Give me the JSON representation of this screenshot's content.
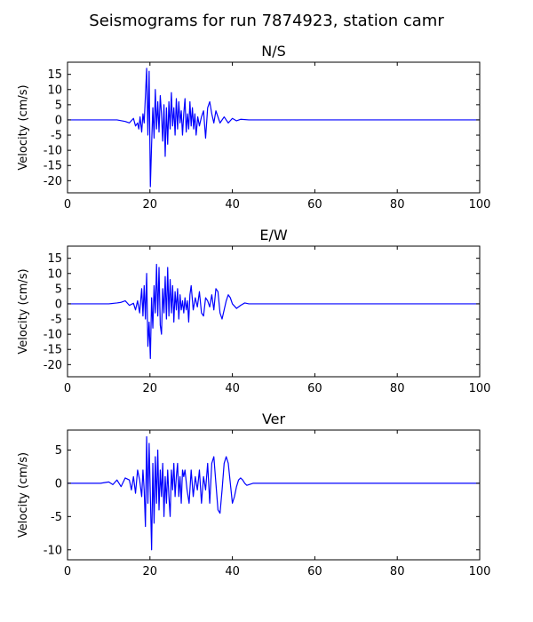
{
  "title": "Seismograms for run 7874923, station camr",
  "chart_data": [
    {
      "type": "line",
      "title": "N/S",
      "xlabel": "",
      "ylabel": "Velocity (cm/s)",
      "xlim": [
        0,
        100
      ],
      "ylim": [
        -24,
        19
      ],
      "xticks": [
        0,
        20,
        40,
        60,
        80,
        100
      ],
      "yticks": [
        15,
        10,
        5,
        0,
        -5,
        -10,
        -15,
        -20
      ],
      "grid": false,
      "color": "#0000ff",
      "series": [
        {
          "x": [
            0,
            12,
            14,
            15,
            16,
            16.5,
            17,
            17.3,
            17.6,
            18,
            18.3,
            18.6,
            18.9,
            19.2,
            19.5,
            19.8,
            20.1,
            20.4,
            20.7,
            21.0,
            21.3,
            21.6,
            21.9,
            22.2,
            22.5,
            22.8,
            23.1,
            23.4,
            23.7,
            24.0,
            24.3,
            24.6,
            24.9,
            25.2,
            25.5,
            25.8,
            26.1,
            26.4,
            26.7,
            27.0,
            27.3,
            27.6,
            27.9,
            28.2,
            28.5,
            28.8,
            29.1,
            29.4,
            29.7,
            30.0,
            30.3,
            30.6,
            30.9,
            31.2,
            31.6,
            32.0,
            32.5,
            33.0,
            33.5,
            34.0,
            34.5,
            35.0,
            35.5,
            36.0,
            37.0,
            38.0,
            39.0,
            40.0,
            41.0,
            42.0,
            44.0,
            46.0,
            50.0,
            60.0,
            100.0
          ],
          "y": [
            0,
            0,
            -0.5,
            -1,
            0.5,
            -2,
            -1,
            -3,
            1,
            -4,
            2,
            -1,
            8,
            17,
            -5,
            16,
            -22,
            -8,
            4,
            -6,
            10,
            -3,
            6,
            -4,
            8,
            2,
            -7,
            5,
            -12,
            4,
            -8,
            6,
            -3,
            9,
            -2,
            4,
            -5,
            7,
            -3,
            6,
            -1,
            3,
            -5,
            2,
            7,
            -4,
            2,
            -3,
            6,
            -2,
            4,
            -3,
            2,
            -5,
            1,
            -2,
            1,
            3,
            -6,
            4,
            6,
            2,
            -1,
            3,
            -1,
            1,
            -1,
            0.5,
            -0.3,
            0.2,
            0,
            0,
            0,
            0,
            0
          ]
        }
      ]
    },
    {
      "type": "line",
      "title": "E/W",
      "xlabel": "",
      "ylabel": "Velocity (cm/s)",
      "xlim": [
        0,
        100
      ],
      "ylim": [
        -24,
        19
      ],
      "xticks": [
        0,
        20,
        40,
        60,
        80,
        100
      ],
      "yticks": [
        15,
        10,
        5,
        0,
        -5,
        -10,
        -15,
        -20
      ],
      "grid": false,
      "color": "#0000ff",
      "series": [
        {
          "x": [
            0,
            10,
            12,
            13,
            14,
            15,
            16,
            16.5,
            17,
            17.5,
            18,
            18.3,
            18.6,
            18.9,
            19.2,
            19.5,
            19.8,
            20.1,
            20.4,
            20.7,
            21.0,
            21.3,
            21.6,
            21.9,
            22.2,
            22.5,
            22.8,
            23.1,
            23.4,
            23.7,
            24.0,
            24.3,
            24.6,
            24.9,
            25.2,
            25.5,
            25.8,
            26.1,
            26.4,
            26.7,
            27.0,
            27.3,
            27.6,
            27.9,
            28.2,
            28.5,
            28.8,
            29.1,
            29.4,
            29.7,
            30.0,
            30.5,
            31.0,
            31.5,
            32.0,
            32.5,
            33.0,
            33.5,
            34.0,
            34.5,
            35.0,
            35.5,
            36.0,
            36.5,
            37.0,
            37.5,
            38.0,
            38.5,
            39.0,
            39.5,
            40.0,
            41.0,
            42.0,
            43.0,
            44.0,
            46.0,
            50.0,
            60.0,
            100.0
          ],
          "y": [
            0,
            0,
            0.3,
            0.5,
            1,
            -0.5,
            0.2,
            -2,
            1,
            -3,
            5,
            -4,
            6,
            -5,
            10,
            -14,
            -6,
            -18,
            2,
            -8,
            6,
            -3,
            13,
            -4,
            12,
            -7,
            -10,
            5,
            -3,
            9,
            -5,
            12,
            -4,
            8,
            -3,
            6,
            -6,
            4,
            -2,
            5,
            -5,
            3,
            -2,
            1,
            -3,
            2,
            -2,
            1,
            -6,
            3,
            6,
            -2,
            2,
            -1,
            4,
            -3,
            -4,
            2,
            1,
            -1,
            3,
            -2,
            5,
            4,
            -3,
            -5,
            -2,
            1,
            3,
            2,
            0,
            -1.5,
            -0.5,
            0.3,
            0,
            0,
            0,
            0,
            0
          ]
        }
      ]
    },
    {
      "type": "line",
      "title": "Ver",
      "xlabel": "",
      "ylabel": "Velocity (cm/s)",
      "xlim": [
        0,
        100
      ],
      "ylim": [
        -11.5,
        8
      ],
      "xticks": [
        0,
        20,
        40,
        60,
        80,
        100
      ],
      "yticks": [
        5,
        0,
        -5,
        -10
      ],
      "grid": false,
      "color": "#0000ff",
      "series": [
        {
          "x": [
            0,
            8,
            10,
            11,
            12,
            13,
            14,
            15,
            15.5,
            16,
            16.5,
            17,
            17.5,
            18,
            18.3,
            18.6,
            18.9,
            19.2,
            19.5,
            19.8,
            20.1,
            20.4,
            20.7,
            21.0,
            21.3,
            21.6,
            21.9,
            22.2,
            22.5,
            22.8,
            23.1,
            23.4,
            23.7,
            24.0,
            24.3,
            24.6,
            24.9,
            25.2,
            25.5,
            25.8,
            26.1,
            26.4,
            26.7,
            27.0,
            27.3,
            27.6,
            27.9,
            28.2,
            28.5,
            29.0,
            29.5,
            30.0,
            30.5,
            31.0,
            31.5,
            32.0,
            32.5,
            33.0,
            33.5,
            34.0,
            34.5,
            35.0,
            35.5,
            36.0,
            36.5,
            37.0,
            37.5,
            38.0,
            38.5,
            39.0,
            39.5,
            40.0,
            40.5,
            41.0,
            41.5,
            42.0,
            42.5,
            43.0,
            43.5,
            44.0,
            45.0,
            46.0,
            48.0,
            50.0,
            60.0,
            100.0
          ],
          "y": [
            0,
            0,
            0.2,
            -0.2,
            0.5,
            -0.5,
            0.8,
            0.5,
            -1,
            1,
            -1.5,
            2,
            0.5,
            -2,
            2,
            -1,
            -6.5,
            7,
            -3,
            6,
            -2,
            -10,
            3,
            -6,
            4,
            -3,
            5,
            -4,
            2,
            -2,
            3,
            -5,
            1,
            -3,
            2,
            -2,
            -5,
            2,
            -1,
            3,
            -2,
            1,
            3,
            -2,
            1,
            -3,
            2,
            1,
            2,
            -1,
            -3,
            2,
            -2,
            1,
            -1,
            2,
            -3,
            1,
            -1,
            3,
            -3,
            3,
            4,
            0,
            -4,
            -4.5,
            -1,
            3,
            4,
            3,
            0,
            -3,
            -2,
            -0.5,
            0.5,
            0.8,
            0.5,
            0,
            -0.3,
            -0.2,
            0,
            0,
            0,
            0,
            0,
            0
          ]
        }
      ]
    }
  ]
}
